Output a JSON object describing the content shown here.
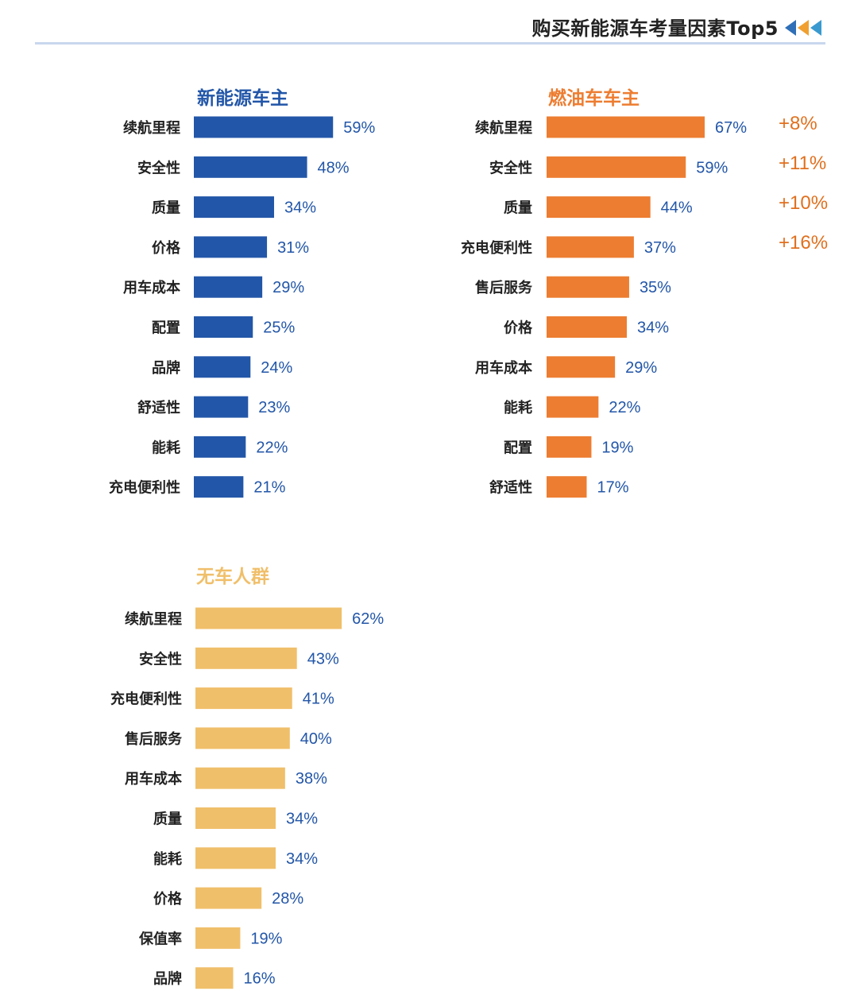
{
  "header": {
    "title": "购买新能源车考量因素Top5"
  },
  "colors": {
    "nev": "#2256a8",
    "fuel": "#ed7d31",
    "nocar": "#f0bf6a",
    "value_text": "#2256a8",
    "diff_text": "#e0701e"
  },
  "chart_data": [
    {
      "type": "bar",
      "orientation": "horizontal",
      "title": "新能源车主",
      "categories": [
        "续航里程",
        "安全性",
        "质量",
        "价格",
        "用车成本",
        "配置",
        "品牌",
        "舒适性",
        "能耗",
        "充电便利性"
      ],
      "values": [
        59,
        48,
        34,
        31,
        29,
        25,
        24,
        23,
        22,
        21
      ],
      "labels": [
        "59%",
        "48%",
        "34%",
        "31%",
        "29%",
        "25%",
        "24%",
        "23%",
        "22%",
        "21%"
      ],
      "unit": "%",
      "grid": false
    },
    {
      "type": "bar",
      "orientation": "horizontal",
      "title": "燃油车车主",
      "categories": [
        "续航里程",
        "安全性",
        "质量",
        "充电便利性",
        "售后服务",
        "价格",
        "用车成本",
        "能耗",
        "配置",
        "舒适性"
      ],
      "values": [
        67,
        59,
        44,
        37,
        35,
        34,
        29,
        22,
        19,
        17
      ],
      "labels": [
        "67%",
        "59%",
        "44%",
        "37%",
        "35%",
        "34%",
        "29%",
        "22%",
        "19%",
        "17%"
      ],
      "annotations": [
        "+8%",
        "+11%",
        "+10%",
        "+16%"
      ],
      "unit": "%",
      "grid": false
    },
    {
      "type": "bar",
      "orientation": "horizontal",
      "title": "无车人群",
      "categories": [
        "续航里程",
        "安全性",
        "充电便利性",
        "售后服务",
        "用车成本",
        "质量",
        "能耗",
        "价格",
        "保值率",
        "品牌"
      ],
      "values": [
        62,
        43,
        41,
        40,
        38,
        34,
        34,
        28,
        19,
        16
      ],
      "labels": [
        "62%",
        "43%",
        "41%",
        "40%",
        "38%",
        "34%",
        "34%",
        "28%",
        "19%",
        "16%"
      ],
      "unit": "%",
      "grid": false
    }
  ]
}
